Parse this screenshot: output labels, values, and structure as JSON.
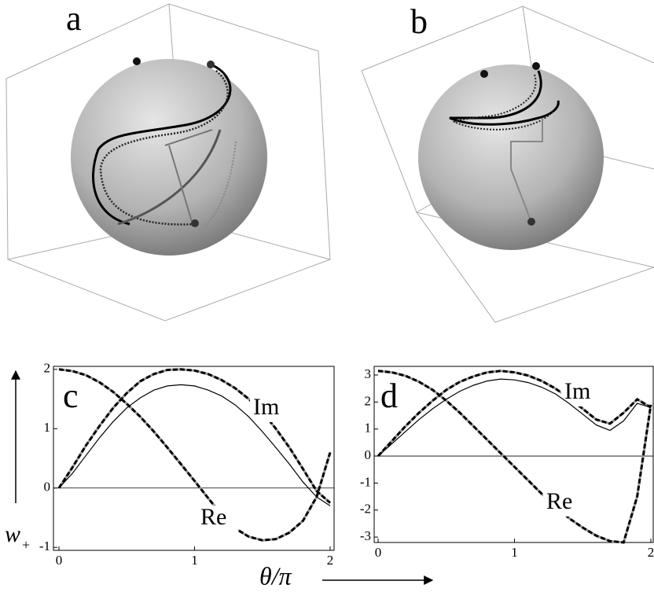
{
  "panels": [
    {
      "label": "a"
    },
    {
      "label": "b"
    }
  ],
  "x_axis_label": "θ/π",
  "y_axis_label": "w",
  "y_axis_sub": "+",
  "chart_data": [
    {
      "type": "line",
      "label": "c",
      "xlim": [
        0,
        2
      ],
      "ylim": [
        -1.05,
        2.05
      ],
      "xticks": [
        0,
        1,
        2
      ],
      "yticks": [
        -1,
        0,
        1,
        2
      ],
      "x": [
        0,
        0.1,
        0.2,
        0.3,
        0.4,
        0.5,
        0.6,
        0.7,
        0.8,
        0.9,
        1.0,
        1.1,
        1.2,
        1.3,
        1.4,
        1.5,
        1.6,
        1.7,
        1.8,
        1.9,
        2.0
      ],
      "series": [
        {
          "name": "Re",
          "color": "#000000",
          "style": "dashed",
          "values": [
            2,
            1.97,
            1.9,
            1.78,
            1.62,
            1.42,
            1.2,
            0.95,
            0.68,
            0.4,
            0.12,
            -0.17,
            -0.45,
            -0.68,
            -0.82,
            -0.88,
            -0.86,
            -0.75,
            -0.55,
            -0.15,
            0.6
          ]
        },
        {
          "name": "Im",
          "color": "#000000",
          "style": "dashed",
          "values": [
            0,
            0.35,
            0.72,
            1.05,
            1.35,
            1.6,
            1.8,
            1.92,
            1.99,
            2.0,
            1.98,
            1.92,
            1.82,
            1.68,
            1.5,
            1.28,
            1.0,
            0.68,
            0.32,
            -0.05,
            -0.25
          ]
        },
        {
          "color": "#000000",
          "style": "solid",
          "values": [
            0,
            0.25,
            0.55,
            0.85,
            1.12,
            1.35,
            1.52,
            1.65,
            1.72,
            1.74,
            1.72,
            1.65,
            1.55,
            1.4,
            1.2,
            0.95,
            0.68,
            0.4,
            0.1,
            -0.15,
            -0.3
          ]
        }
      ]
    },
    {
      "type": "line",
      "label": "d",
      "xlim": [
        0,
        2
      ],
      "ylim": [
        -3.2,
        3.32
      ],
      "xticks": [
        0,
        1,
        2
      ],
      "yticks": [
        -3,
        -2,
        -1,
        0,
        1,
        2,
        3
      ],
      "x": [
        0,
        0.1,
        0.2,
        0.3,
        0.4,
        0.5,
        0.6,
        0.7,
        0.8,
        0.9,
        1.0,
        1.1,
        1.2,
        1.3,
        1.4,
        1.5,
        1.6,
        1.7,
        1.8,
        1.9,
        2.0
      ],
      "series": [
        {
          "name": "Re",
          "color": "#000000",
          "style": "dashed",
          "values": [
            3.15,
            3.1,
            2.97,
            2.75,
            2.45,
            2.05,
            1.6,
            1.1,
            0.6,
            0.1,
            -0.4,
            -0.9,
            -1.4,
            -1.85,
            -2.3,
            -2.65,
            -2.95,
            -3.15,
            -3.2,
            -1.5,
            1.9
          ]
        },
        {
          "name": "Im",
          "color": "#000000",
          "style": "dashed",
          "values": [
            0,
            0.55,
            1.1,
            1.6,
            2.05,
            2.45,
            2.75,
            2.95,
            3.1,
            3.15,
            3.1,
            2.98,
            2.78,
            2.5,
            2.15,
            1.75,
            1.35,
            1.2,
            1.6,
            2.1,
            1.8
          ]
        },
        {
          "color": "#000000",
          "style": "solid",
          "values": [
            0,
            0.45,
            0.9,
            1.35,
            1.75,
            2.1,
            2.4,
            2.62,
            2.78,
            2.85,
            2.82,
            2.72,
            2.55,
            2.3,
            1.95,
            1.55,
            1.15,
            0.95,
            1.3,
            1.95,
            1.8
          ]
        }
      ]
    }
  ]
}
